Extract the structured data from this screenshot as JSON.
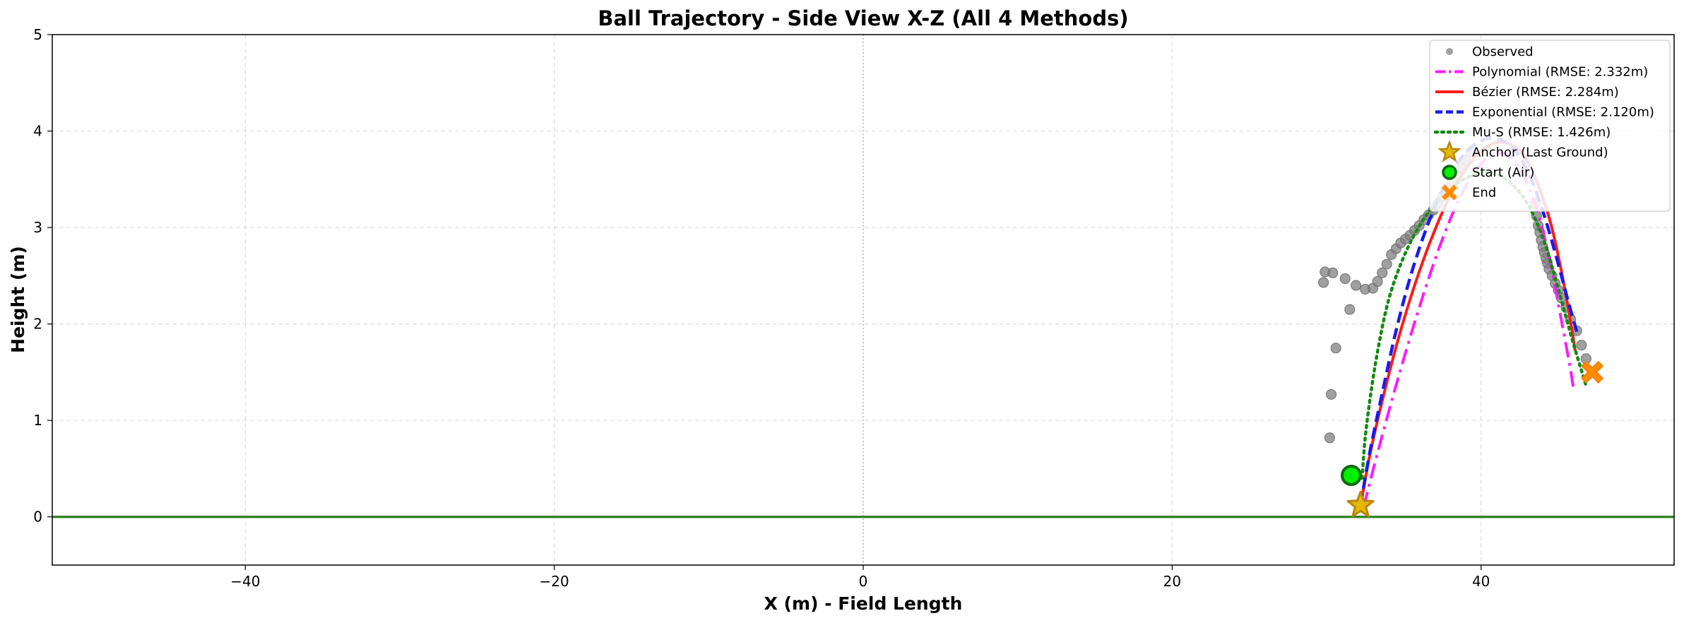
{
  "chart_data": {
    "type": "scatter",
    "title": "Ball Trajectory - Side View X-Z (All 4 Methods)",
    "xlabel": "X (m) - Field Length",
    "ylabel": "Height (m)",
    "xlim": [
      -52.5,
      52.5
    ],
    "ylim": [
      -0.5,
      5
    ],
    "xticks": [
      -40,
      -20,
      0,
      20,
      40
    ],
    "yticks": [
      0,
      1,
      2,
      3,
      4,
      5
    ],
    "grid": true,
    "legend_position": "top-right",
    "colors": {
      "observed": "#808080",
      "polynomial": "#ff1aff",
      "bezier": "#ff1a1a",
      "exponential": "#1a1aee",
      "mus": "#138a13",
      "anchor_fill": "#e6b800",
      "anchor_edge": "#b8860b",
      "start_fill": "#00ee00",
      "start_edge": "#0a6b0a",
      "end": "#ff8c00",
      "ground": "#2e7d1e"
    },
    "observed": {
      "name": "Observed",
      "x": [
        30.2,
        30.3,
        30.6,
        31.5,
        29.8,
        29.9,
        30.4,
        31.2,
        31.9,
        32.5,
        33.0,
        33.3,
        33.6,
        33.9,
        34.2,
        34.5,
        34.8,
        35.1,
        35.4,
        35.7,
        36.0,
        36.3,
        36.6,
        36.9,
        37.2,
        37.5,
        37.8,
        38.1,
        38.4,
        38.7,
        39.0,
        39.3,
        43.5,
        43.6,
        43.7,
        43.8,
        43.9,
        44.0,
        44.1,
        44.2,
        44.3,
        44.4,
        44.6,
        44.8,
        45.0,
        45.2,
        45.5,
        45.8,
        46.2,
        46.5,
        46.8
      ],
      "y": [
        0.82,
        1.27,
        1.75,
        2.15,
        2.43,
        2.54,
        2.53,
        2.47,
        2.4,
        2.36,
        2.37,
        2.44,
        2.53,
        2.62,
        2.72,
        2.78,
        2.84,
        2.88,
        2.92,
        2.97,
        3.02,
        3.08,
        3.13,
        3.18,
        3.25,
        3.32,
        3.4,
        3.48,
        3.55,
        3.62,
        3.7,
        3.78,
        3.25,
        3.12,
        3.02,
        2.95,
        2.87,
        2.8,
        2.74,
        2.68,
        2.63,
        2.57,
        2.5,
        2.42,
        2.35,
        2.27,
        2.17,
        2.05,
        1.93,
        1.78,
        1.64
      ]
    },
    "series": [
      {
        "name": "Polynomial (RMSE: 2.332m)",
        "style": "dashdot",
        "x": [
          32.4,
          33.0,
          33.8,
          34.6,
          35.5,
          36.5,
          37.5,
          38.6,
          39.7,
          40.8,
          41.8,
          42.8,
          43.7,
          44.5,
          45.2,
          45.8,
          46.0
        ],
        "y": [
          0.1,
          0.48,
          0.96,
          1.42,
          1.91,
          2.42,
          2.88,
          3.3,
          3.6,
          3.76,
          3.74,
          3.52,
          3.14,
          2.62,
          2.04,
          1.52,
          1.3
        ]
      },
      {
        "name": "Bézier (RMSE: 2.284m)",
        "style": "solid",
        "x": [
          32.2,
          32.8,
          33.6,
          34.6,
          35.7,
          36.9,
          38.1,
          39.3,
          40.5,
          41.6,
          42.7,
          43.6,
          44.5,
          45.2,
          45.8,
          46.1
        ],
        "y": [
          0.12,
          0.64,
          1.2,
          1.82,
          2.4,
          2.93,
          3.36,
          3.67,
          3.85,
          3.88,
          3.76,
          3.48,
          3.05,
          2.55,
          2.02,
          1.72
        ]
      },
      {
        "name": "Exponential (RMSE: 2.120m)",
        "style": "dashed",
        "x": [
          32.2,
          32.8,
          33.6,
          34.5,
          35.5,
          36.6,
          37.7,
          38.8,
          40.0,
          41.1,
          42.2,
          43.2,
          44.1,
          44.9,
          45.6,
          46.2
        ],
        "y": [
          0.12,
          0.67,
          1.28,
          1.93,
          2.53,
          3.05,
          3.46,
          3.74,
          3.9,
          3.92,
          3.8,
          3.52,
          3.12,
          2.68,
          2.26,
          1.92
        ]
      },
      {
        "name": "Mu-S (RMSE: 1.426m)",
        "style": "dotted",
        "x": [
          32.3,
          32.5,
          32.9,
          33.4,
          34.0,
          34.8,
          35.8,
          37.0,
          38.3,
          39.6,
          40.8,
          42.0,
          43.1,
          44.1,
          45.0,
          45.9,
          46.8
        ],
        "y": [
          0.4,
          0.82,
          1.32,
          1.8,
          2.24,
          2.62,
          2.96,
          3.24,
          3.44,
          3.55,
          3.56,
          3.45,
          3.22,
          2.85,
          2.36,
          1.84,
          1.36
        ]
      }
    ],
    "markers": {
      "anchor": {
        "name": "Anchor (Last Ground)",
        "x": 32.2,
        "y": 0.12
      },
      "start": {
        "name": "Start (Air)",
        "x": 31.6,
        "y": 0.43
      },
      "end": {
        "name": "End",
        "x": 47.2,
        "y": 1.5
      }
    }
  }
}
